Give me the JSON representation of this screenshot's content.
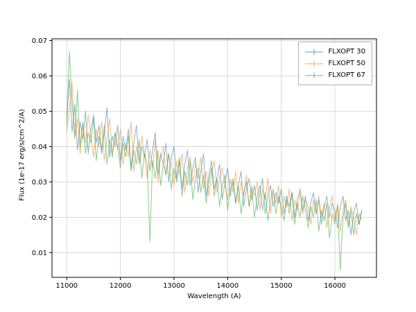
{
  "chart_data": {
    "type": "line",
    "title": "",
    "xlabel": "Wavelength (A)",
    "ylabel": "Flux (1e-17 erg/s/cm^2/A)",
    "xlim": [
      10725,
      16775
    ],
    "ylim": [
      0.003,
      0.0705
    ],
    "grid": true,
    "legend_position": "upper right",
    "line_alpha": 0.55,
    "xticks": [
      11000,
      12000,
      13000,
      14000,
      15000,
      16000
    ],
    "xtick_labels": [
      "11000",
      "12000",
      "13000",
      "14000",
      "15000",
      "16000"
    ],
    "yticks": [
      0.01,
      0.02,
      0.03,
      0.04,
      0.05,
      0.06,
      0.07
    ],
    "ytick_labels": [
      "0.01",
      "0.02",
      "0.03",
      "0.04",
      "0.05",
      "0.06",
      "0.07"
    ],
    "x_start": 11000,
    "x_step": 50,
    "series": [
      {
        "name": "FLXOPT 30",
        "color": "#1f77b4",
        "values": [
          0.048,
          0.059,
          0.044,
          0.052,
          0.039,
          0.047,
          0.042,
          0.05,
          0.038,
          0.045,
          0.049,
          0.041,
          0.046,
          0.038,
          0.044,
          0.051,
          0.037,
          0.043,
          0.04,
          0.046,
          0.036,
          0.043,
          0.039,
          0.045,
          0.034,
          0.041,
          0.046,
          0.035,
          0.04,
          0.037,
          0.042,
          0.033,
          0.039,
          0.044,
          0.032,
          0.038,
          0.035,
          0.041,
          0.03,
          0.037,
          0.04,
          0.031,
          0.036,
          0.028,
          0.035,
          0.039,
          0.029,
          0.034,
          0.037,
          0.027,
          0.033,
          0.038,
          0.026,
          0.032,
          0.036,
          0.028,
          0.031,
          0.035,
          0.025,
          0.03,
          0.034,
          0.026,
          0.03,
          0.024,
          0.029,
          0.033,
          0.023,
          0.028,
          0.031,
          0.025,
          0.029,
          0.022,
          0.027,
          0.031,
          0.021,
          0.026,
          0.029,
          0.023,
          0.027,
          0.024,
          0.028,
          0.021,
          0.026,
          0.023,
          0.027,
          0.02,
          0.025,
          0.028,
          0.022,
          0.026,
          0.019,
          0.024,
          0.027,
          0.021,
          0.025,
          0.018,
          0.023,
          0.026,
          0.02,
          0.024,
          0.022,
          0.017,
          0.023,
          0.026,
          0.019,
          0.022,
          0.015,
          0.021,
          0.024,
          0.018,
          0.022
        ]
      },
      {
        "name": "FLXOPT 50",
        "color": "#ff7f0e",
        "values": [
          0.044,
          0.051,
          0.058,
          0.042,
          0.048,
          0.038,
          0.046,
          0.041,
          0.049,
          0.043,
          0.037,
          0.045,
          0.04,
          0.047,
          0.036,
          0.042,
          0.048,
          0.038,
          0.044,
          0.039,
          0.045,
          0.035,
          0.041,
          0.037,
          0.047,
          0.033,
          0.04,
          0.036,
          0.043,
          0.038,
          0.031,
          0.039,
          0.034,
          0.042,
          0.03,
          0.037,
          0.04,
          0.032,
          0.038,
          0.035,
          0.029,
          0.036,
          0.032,
          0.038,
          0.027,
          0.034,
          0.037,
          0.03,
          0.035,
          0.031,
          0.037,
          0.028,
          0.033,
          0.026,
          0.032,
          0.036,
          0.027,
          0.031,
          0.034,
          0.029,
          0.025,
          0.031,
          0.027,
          0.033,
          0.024,
          0.03,
          0.026,
          0.032,
          0.023,
          0.029,
          0.026,
          0.03,
          0.022,
          0.028,
          0.025,
          0.031,
          0.021,
          0.027,
          0.024,
          0.029,
          0.02,
          0.026,
          0.023,
          0.028,
          0.019,
          0.025,
          0.022,
          0.027,
          0.021,
          0.025,
          0.023,
          0.018,
          0.025,
          0.021,
          0.026,
          0.02,
          0.024,
          0.017,
          0.023,
          0.026,
          0.019,
          0.024,
          0.016,
          0.022,
          0.025,
          0.018,
          0.023,
          0.02,
          0.015,
          0.021,
          0.019
        ]
      },
      {
        "name": "FLXOPT 67",
        "color": "#2ca02c",
        "values": [
          0.046,
          0.067,
          0.052,
          0.043,
          0.056,
          0.04,
          0.047,
          0.038,
          0.044,
          0.041,
          0.048,
          0.036,
          0.043,
          0.039,
          0.046,
          0.035,
          0.042,
          0.037,
          0.044,
          0.04,
          0.034,
          0.041,
          0.037,
          0.043,
          0.033,
          0.039,
          0.035,
          0.042,
          0.031,
          0.038,
          0.035,
          0.013,
          0.036,
          0.031,
          0.039,
          0.029,
          0.035,
          0.032,
          0.038,
          0.028,
          0.034,
          0.03,
          0.037,
          0.026,
          0.033,
          0.029,
          0.036,
          0.025,
          0.031,
          0.034,
          0.027,
          0.032,
          0.024,
          0.03,
          0.034,
          0.026,
          0.031,
          0.023,
          0.029,
          0.032,
          0.022,
          0.028,
          0.031,
          0.024,
          0.029,
          0.021,
          0.027,
          0.03,
          0.023,
          0.028,
          0.02,
          0.026,
          0.029,
          0.022,
          0.027,
          0.019,
          0.025,
          0.028,
          0.021,
          0.026,
          0.023,
          0.019,
          0.025,
          0.021,
          0.027,
          0.018,
          0.024,
          0.02,
          0.026,
          0.022,
          0.017,
          0.023,
          0.02,
          0.025,
          0.016,
          0.022,
          0.019,
          0.024,
          0.014,
          0.021,
          0.018,
          0.023,
          0.005,
          0.02,
          0.024,
          0.017,
          0.022,
          0.015,
          0.021,
          0.018,
          0.022
        ]
      }
    ]
  }
}
